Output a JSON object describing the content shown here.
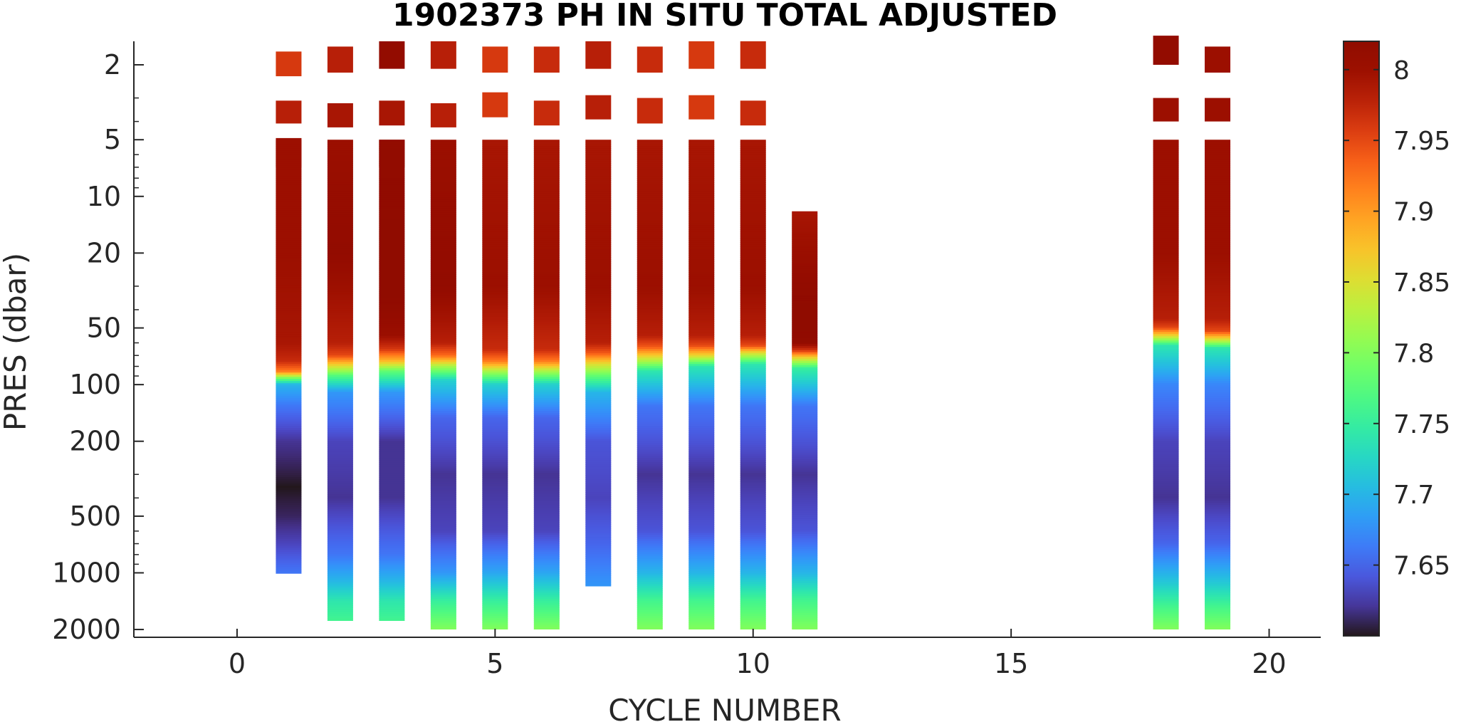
{
  "chart_data": {
    "type": "heatmap",
    "title": "1902373  PH IN SITU TOTAL ADJUSTED",
    "xlabel": "CYCLE NUMBER",
    "ylabel": "PRES (dbar)",
    "xlim": [
      -2,
      21
    ],
    "ylim": [
      1.5,
      2200
    ],
    "yscale": "log",
    "yreverse": true,
    "grid": false,
    "x_ticks": [
      0,
      5,
      10,
      15,
      20
    ],
    "x_tick_labels": [
      "0",
      "5",
      "10",
      "15",
      "20"
    ],
    "y_ticks": [
      2,
      5,
      10,
      20,
      50,
      100,
      200,
      500,
      1000,
      2000
    ],
    "y_tick_labels": [
      "2",
      "5",
      "10",
      "20",
      "50",
      "100",
      "200",
      "500",
      "1000",
      "2000"
    ],
    "colorbar": {
      "colormap": "turbo",
      "range": [
        7.6,
        8.02
      ],
      "ticks": [
        7.65,
        7.7,
        7.75,
        7.8,
        7.85,
        7.9,
        7.95,
        8
      ],
      "tick_labels": [
        "7.65",
        "7.7",
        "7.75",
        "7.8",
        "7.85",
        "7.9",
        "7.95",
        "8"
      ]
    },
    "profiles": [
      {
        "cycle": 1,
        "max_pres": 1010,
        "surface_ph": 7.96,
        "samples": [
          [
            1.7,
            2.3,
            7.96
          ],
          [
            3.1,
            4.1,
            7.98
          ],
          [
            4.9,
            7.0,
            8.0
          ]
        ],
        "profile": [
          [
            5,
            8.0
          ],
          [
            20,
            8.0
          ],
          [
            60,
            7.99
          ],
          [
            75,
            7.97
          ],
          [
            85,
            7.92
          ],
          [
            92,
            7.8
          ],
          [
            100,
            7.7
          ],
          [
            130,
            7.66
          ],
          [
            200,
            7.62
          ],
          [
            350,
            7.6
          ],
          [
            500,
            7.61
          ],
          [
            700,
            7.63
          ],
          [
            1000,
            7.66
          ]
        ]
      },
      {
        "cycle": 2,
        "max_pres": 1800,
        "surface_ph": 7.98,
        "samples": [
          [
            1.6,
            2.2,
            7.98
          ],
          [
            3.2,
            4.3,
            7.99
          ]
        ],
        "profile": [
          [
            5,
            8.0
          ],
          [
            20,
            8.01
          ],
          [
            60,
            7.98
          ],
          [
            70,
            7.95
          ],
          [
            80,
            7.85
          ],
          [
            90,
            7.77
          ],
          [
            110,
            7.68
          ],
          [
            200,
            7.63
          ],
          [
            400,
            7.62
          ],
          [
            800,
            7.66
          ],
          [
            1100,
            7.7
          ],
          [
            1400,
            7.74
          ],
          [
            1800,
            7.76
          ]
        ]
      },
      {
        "cycle": 3,
        "max_pres": 1800,
        "surface_ph": 8.01,
        "samples": [
          [
            1.5,
            2.1,
            8.01
          ],
          [
            3.1,
            4.2,
            7.99
          ],
          [
            5,
            7.0,
            8.0
          ]
        ],
        "profile": [
          [
            5,
            8.01
          ],
          [
            30,
            8.02
          ],
          [
            55,
            8.0
          ],
          [
            65,
            7.96
          ],
          [
            75,
            7.88
          ],
          [
            85,
            7.78
          ],
          [
            110,
            7.68
          ],
          [
            200,
            7.62
          ],
          [
            400,
            7.62
          ],
          [
            800,
            7.66
          ],
          [
            1100,
            7.7
          ],
          [
            1400,
            7.74
          ],
          [
            1800,
            7.76
          ]
        ]
      },
      {
        "cycle": 4,
        "max_pres": 2000,
        "surface_ph": 7.98,
        "samples": [
          [
            1.5,
            2.1,
            7.98
          ],
          [
            3.2,
            4.3,
            7.98
          ]
        ],
        "profile": [
          [
            5,
            8.0
          ],
          [
            30,
            8.01
          ],
          [
            60,
            7.98
          ],
          [
            70,
            7.93
          ],
          [
            80,
            7.82
          ],
          [
            95,
            7.72
          ],
          [
            150,
            7.65
          ],
          [
            300,
            7.62
          ],
          [
            600,
            7.63
          ],
          [
            1000,
            7.68
          ],
          [
            1400,
            7.75
          ],
          [
            2000,
            7.8
          ]
        ]
      },
      {
        "cycle": 5,
        "max_pres": 2000,
        "surface_ph": 7.96,
        "samples": [
          [
            1.6,
            2.2,
            7.96
          ],
          [
            2.8,
            3.8,
            7.96
          ]
        ],
        "profile": [
          [
            5,
            7.99
          ],
          [
            30,
            8.0
          ],
          [
            65,
            7.97
          ],
          [
            75,
            7.92
          ],
          [
            85,
            7.82
          ],
          [
            100,
            7.72
          ],
          [
            150,
            7.65
          ],
          [
            300,
            7.62
          ],
          [
            600,
            7.63
          ],
          [
            1000,
            7.69
          ],
          [
            1400,
            7.75
          ],
          [
            2000,
            7.8
          ]
        ]
      },
      {
        "cycle": 6,
        "max_pres": 2000,
        "surface_ph": 7.97,
        "samples": [
          [
            1.6,
            2.2,
            7.97
          ],
          [
            3.1,
            4.2,
            7.97
          ]
        ],
        "profile": [
          [
            5,
            7.99
          ],
          [
            30,
            8.0
          ],
          [
            65,
            7.97
          ],
          [
            75,
            7.92
          ],
          [
            85,
            7.82
          ],
          [
            100,
            7.72
          ],
          [
            150,
            7.65
          ],
          [
            300,
            7.62
          ],
          [
            600,
            7.63
          ],
          [
            1000,
            7.69
          ],
          [
            1400,
            7.75
          ],
          [
            2000,
            7.8
          ]
        ]
      },
      {
        "cycle": 7,
        "max_pres": 1180,
        "surface_ph": 7.98,
        "samples": [
          [
            1.5,
            2.1,
            7.98
          ],
          [
            2.9,
            3.9,
            7.98
          ]
        ],
        "profile": [
          [
            5,
            7.99
          ],
          [
            30,
            8.0
          ],
          [
            60,
            7.98
          ],
          [
            68,
            7.94
          ],
          [
            78,
            7.85
          ],
          [
            90,
            7.78
          ],
          [
            110,
            7.7
          ],
          [
            200,
            7.64
          ],
          [
            400,
            7.63
          ],
          [
            700,
            7.65
          ],
          [
            1180,
            7.68
          ]
        ]
      },
      {
        "cycle": 8,
        "max_pres": 2000,
        "surface_ph": 7.97,
        "samples": [
          [
            1.6,
            2.2,
            7.97
          ],
          [
            3.0,
            4.1,
            7.97
          ]
        ],
        "profile": [
          [
            5,
            7.99
          ],
          [
            30,
            8.0
          ],
          [
            55,
            7.98
          ],
          [
            63,
            7.94
          ],
          [
            72,
            7.85
          ],
          [
            85,
            7.74
          ],
          [
            130,
            7.66
          ],
          [
            300,
            7.62
          ],
          [
            600,
            7.64
          ],
          [
            1000,
            7.7
          ],
          [
            1400,
            7.76
          ],
          [
            2000,
            7.8
          ]
        ]
      },
      {
        "cycle": 9,
        "max_pres": 2000,
        "surface_ph": 7.96,
        "samples": [
          [
            1.5,
            2.1,
            7.96
          ],
          [
            2.9,
            3.9,
            7.96
          ]
        ],
        "profile": [
          [
            5,
            7.99
          ],
          [
            30,
            8.0
          ],
          [
            55,
            7.98
          ],
          [
            62,
            7.95
          ],
          [
            70,
            7.86
          ],
          [
            80,
            7.74
          ],
          [
            130,
            7.66
          ],
          [
            300,
            7.62
          ],
          [
            600,
            7.64
          ],
          [
            1000,
            7.7
          ],
          [
            1400,
            7.76
          ],
          [
            2000,
            7.8
          ]
        ]
      },
      {
        "cycle": 10,
        "max_pres": 2000,
        "surface_ph": 7.97,
        "samples": [
          [
            1.5,
            2.1,
            7.97
          ],
          [
            3.1,
            4.2,
            7.97
          ]
        ],
        "profile": [
          [
            5,
            7.99
          ],
          [
            30,
            8.0
          ],
          [
            55,
            7.98
          ],
          [
            62,
            7.95
          ],
          [
            68,
            7.85
          ],
          [
            78,
            7.74
          ],
          [
            130,
            7.66
          ],
          [
            300,
            7.62
          ],
          [
            600,
            7.64
          ],
          [
            1000,
            7.7
          ],
          [
            1400,
            7.76
          ],
          [
            2000,
            7.8
          ]
        ]
      },
      {
        "cycle": 11,
        "max_pres": 2000,
        "surface_ph": 7.99,
        "samples": [],
        "profile": [
          [
            12,
            7.99
          ],
          [
            30,
            8.01
          ],
          [
            45,
            8.02
          ],
          [
            60,
            8.01
          ],
          [
            66,
            7.96
          ],
          [
            72,
            7.86
          ],
          [
            82,
            7.75
          ],
          [
            130,
            7.66
          ],
          [
            300,
            7.62
          ],
          [
            600,
            7.64
          ],
          [
            1000,
            7.7
          ],
          [
            1400,
            7.76
          ],
          [
            2000,
            7.8
          ]
        ]
      },
      {
        "cycle": 18,
        "max_pres": 2000,
        "surface_ph": 8.01,
        "samples": [
          [
            1.4,
            2.0,
            8.01
          ],
          [
            3.0,
            4.0,
            8.0
          ]
        ],
        "profile": [
          [
            5,
            8.0
          ],
          [
            20,
            8.0
          ],
          [
            45,
            7.98
          ],
          [
            50,
            7.95
          ],
          [
            56,
            7.84
          ],
          [
            62,
            7.74
          ],
          [
            100,
            7.67
          ],
          [
            200,
            7.63
          ],
          [
            400,
            7.62
          ],
          [
            700,
            7.65
          ],
          [
            1100,
            7.71
          ],
          [
            1500,
            7.76
          ],
          [
            2000,
            7.8
          ]
        ]
      },
      {
        "cycle": 19,
        "max_pres": 2000,
        "surface_ph": 8.0,
        "samples": [
          [
            1.6,
            2.2,
            8.0
          ],
          [
            3.0,
            4.0,
            8.0
          ]
        ],
        "profile": [
          [
            5,
            8.0
          ],
          [
            20,
            8.0
          ],
          [
            45,
            7.98
          ],
          [
            52,
            7.95
          ],
          [
            58,
            7.84
          ],
          [
            64,
            7.74
          ],
          [
            100,
            7.67
          ],
          [
            200,
            7.63
          ],
          [
            400,
            7.62
          ],
          [
            700,
            7.65
          ],
          [
            1100,
            7.71
          ],
          [
            1500,
            7.76
          ],
          [
            2000,
            7.8
          ]
        ]
      }
    ]
  }
}
